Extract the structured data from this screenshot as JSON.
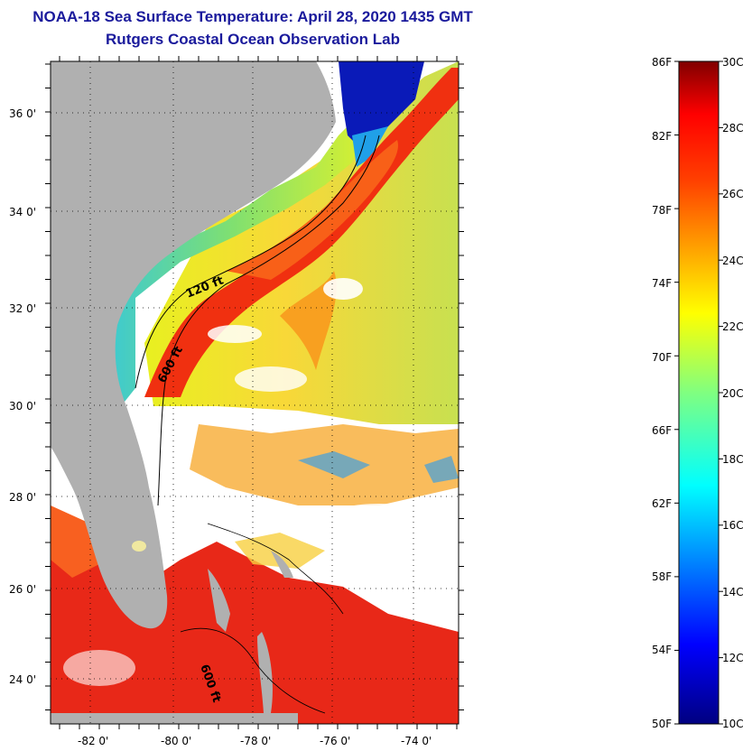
{
  "header": {
    "title_line1": "NOAA-18 Sea Surface Temperature:  April 28, 2020 1435 GMT",
    "title_line2": "Rutgers Coastal Ocean Observation Lab"
  },
  "map": {
    "lat_labels": [
      "36 0'",
      "34 0'",
      "32 0'",
      "30 0'",
      "28 0'",
      "26 0'",
      "24 0'"
    ],
    "lon_labels": [
      "-82 0'",
      "-80 0'",
      "-78 0'",
      "-76 0'",
      "-74 0'"
    ],
    "contour_labels": [
      "120 ft",
      "600 ft",
      "600 ft"
    ],
    "colors": {
      "land": "#b0b0b0",
      "cloud": "#ffffff",
      "warm": "#e01810",
      "mid": "#f8d020",
      "cool": "#00c8e8",
      "cold": "#0018c0"
    }
  },
  "colorbar": {
    "fahrenheit": [
      "86F",
      "82F",
      "78F",
      "74F",
      "70F",
      "66F",
      "62F",
      "58F",
      "54F",
      "50F"
    ],
    "celsius": [
      "30C",
      "28C",
      "26C",
      "24C",
      "22C",
      "20C",
      "18C",
      "16C",
      "14C",
      "12C",
      "10C"
    ],
    "range_f": [
      50,
      86
    ],
    "range_c": [
      10,
      30
    ]
  }
}
